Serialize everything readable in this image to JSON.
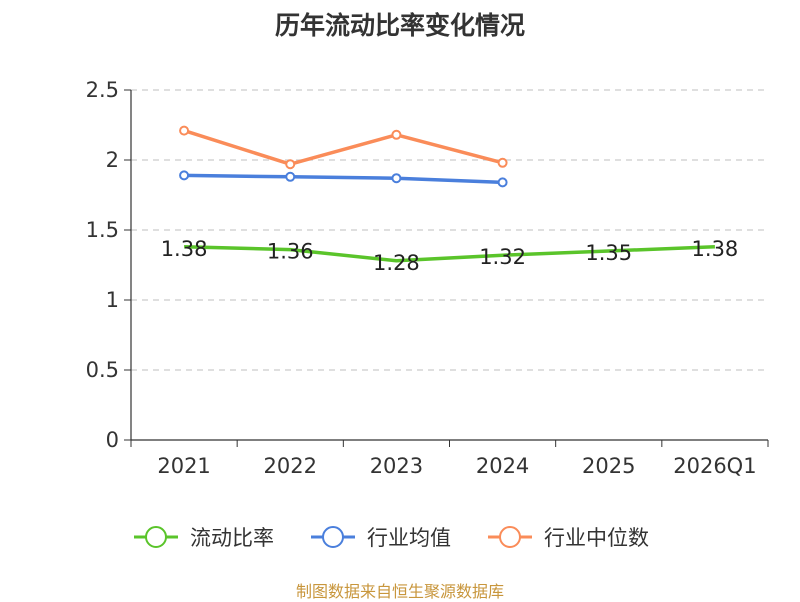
{
  "chart_data": {
    "type": "line",
    "title": "历年流动比率变化情况",
    "categories": [
      "2021",
      "2022",
      "2023",
      "2024",
      "2025",
      "2026Q1"
    ],
    "ylim": [
      0,
      2.5
    ],
    "yticks": [
      "0",
      "0.5",
      "1",
      "1.5",
      "2",
      "2.5"
    ],
    "grid": true,
    "legend_position": "bottom",
    "series": [
      {
        "name": "流动比率",
        "color": "#5ac42a",
        "values": [
          1.38,
          1.36,
          1.28,
          1.32,
          1.35,
          1.38
        ],
        "labels": [
          "1.38",
          "1.36",
          "1.28",
          "1.32",
          "1.35",
          "1.38"
        ],
        "show_labels": true,
        "show_markers": false
      },
      {
        "name": "行业均值",
        "color": "#4a7fdc",
        "values": [
          1.89,
          1.88,
          1.87,
          1.84,
          null,
          null
        ],
        "show_labels": false,
        "show_markers": true
      },
      {
        "name": "行业中位数",
        "color": "#fa8c59",
        "values": [
          2.21,
          1.97,
          2.18,
          1.98,
          null,
          null
        ],
        "show_labels": false,
        "show_markers": true
      }
    ]
  },
  "footer": {
    "source": "制图数据来自恒生聚源数据库"
  }
}
